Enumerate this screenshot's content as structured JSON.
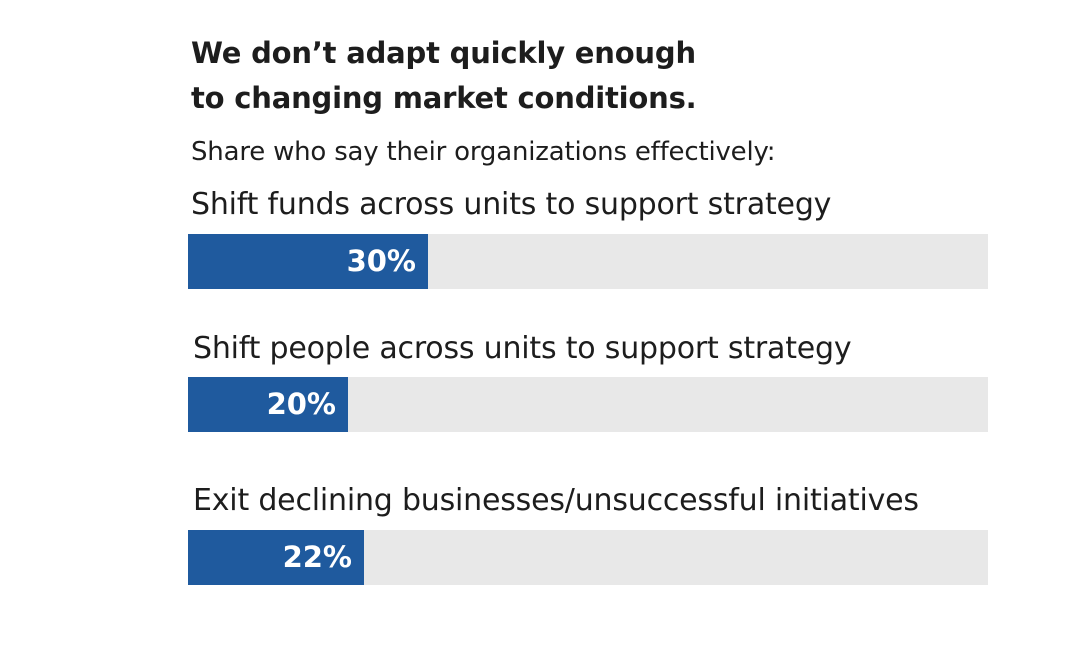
{
  "chart_data": {
    "type": "bar",
    "orientation": "horizontal",
    "title": "We don’t adapt quickly enough to changing market conditions.",
    "title_lines": [
      "We don’t adapt quickly enough",
      "to changing market conditions."
    ],
    "subtitle": "Share who say their organizations effectively:",
    "categories": [
      "Shift funds across units to support strategy",
      "Shift people across units to support strategy",
      "Exit declining businesses/unsuccessful initiatives"
    ],
    "values": [
      30,
      20,
      22
    ],
    "value_labels": [
      "30%",
      "20%",
      "22%"
    ],
    "xlim": [
      0,
      100
    ],
    "grid": false,
    "colors": {
      "bar": "#1f5a9e",
      "track": "#e8e8e8",
      "value_text": "#ffffff"
    }
  }
}
